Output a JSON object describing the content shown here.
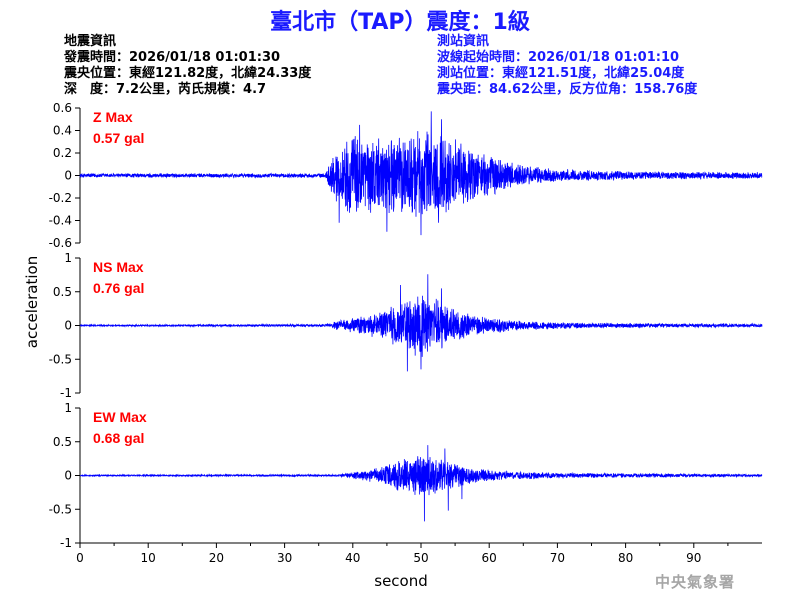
{
  "title": "臺北市（TAP）震度：1級",
  "earthquake_info": {
    "heading": "地震資訊",
    "origin_time": "發震時間：2026/01/18 01:01:30",
    "epicenter": "震央位置：東經121.82度，北緯24.33度",
    "depth_magnitude": "深　度：7.2公里，芮氏規模：4.7"
  },
  "station_info": {
    "heading": "測站資訊",
    "waveform_start": "波線起始時間：2026/01/18 01:01:10",
    "station_location": "測站位置：東經121.51度，北緯25.04度",
    "distance_azimuth": "震央距：84.62公里，反方位角：158.76度"
  },
  "footer_org": "中央氣象署",
  "colors": {
    "title": "#1a1aff",
    "trace": "#0000ff",
    "peak_label": "#ff0000",
    "info_right": "#1a1aff"
  },
  "chart_data": {
    "type": "line",
    "xlabel": "second",
    "ylabel": "acceleration",
    "xlim": [
      0,
      100
    ],
    "x_ticks": [
      0,
      10,
      20,
      30,
      40,
      50,
      60,
      70,
      80,
      90
    ],
    "grid": false,
    "panels": [
      {
        "name": "Z Max",
        "peak": "0.57 gal",
        "ylim": [
          -0.6,
          0.6
        ],
        "y_ticks": [
          0.6,
          0.4,
          0.2,
          0,
          -0.2,
          -0.4,
          -0.6
        ],
        "y_tick_labels": [
          "0.6",
          "0.4",
          "0.2",
          "0",
          "-0.2",
          "-0.4",
          "-0.6"
        ],
        "envelope": [
          [
            0,
            0.02
          ],
          [
            36,
            0.02
          ],
          [
            37,
            0.2
          ],
          [
            40,
            0.4
          ],
          [
            44,
            0.35
          ],
          [
            48,
            0.4
          ],
          [
            52,
            0.45
          ],
          [
            56,
            0.3
          ],
          [
            60,
            0.2
          ],
          [
            65,
            0.1
          ],
          [
            70,
            0.06
          ],
          [
            80,
            0.04
          ],
          [
            100,
            0.03
          ]
        ],
        "peaks": [
          [
            51.5,
            0.57
          ],
          [
            50,
            -0.53
          ],
          [
            53,
            0.5
          ],
          [
            45,
            -0.5
          ],
          [
            41,
            0.45
          ],
          [
            38,
            -0.42
          ]
        ]
      },
      {
        "name": "NS Max",
        "peak": "0.76 gal",
        "ylim": [
          -1,
          1
        ],
        "y_ticks": [
          1,
          0.5,
          0,
          -0.5,
          -1
        ],
        "y_tick_labels": [
          "1",
          "0.5",
          "0",
          "-0.5",
          "-1"
        ],
        "envelope": [
          [
            0,
            0.01
          ],
          [
            36,
            0.02
          ],
          [
            38,
            0.08
          ],
          [
            42,
            0.15
          ],
          [
            46,
            0.3
          ],
          [
            48,
            0.4
          ],
          [
            50,
            0.5
          ],
          [
            52,
            0.45
          ],
          [
            55,
            0.28
          ],
          [
            58,
            0.15
          ],
          [
            65,
            0.07
          ],
          [
            75,
            0.04
          ],
          [
            100,
            0.025
          ]
        ],
        "peaks": [
          [
            51,
            0.76
          ],
          [
            48,
            -0.68
          ],
          [
            50,
            -0.65
          ],
          [
            53,
            0.55
          ],
          [
            47,
            0.6
          ]
        ]
      },
      {
        "name": "EW Max",
        "peak": "0.68 gal",
        "ylim": [
          -1,
          1
        ],
        "y_ticks": [
          1,
          0.5,
          0,
          -0.5,
          -1
        ],
        "y_tick_labels": [
          "1",
          "0.5",
          "0",
          "-0.5",
          "-1"
        ],
        "envelope": [
          [
            0,
            0.01
          ],
          [
            38,
            0.015
          ],
          [
            40,
            0.05
          ],
          [
            44,
            0.12
          ],
          [
            47,
            0.25
          ],
          [
            50,
            0.35
          ],
          [
            52,
            0.32
          ],
          [
            55,
            0.2
          ],
          [
            58,
            0.12
          ],
          [
            62,
            0.07
          ],
          [
            70,
            0.04
          ],
          [
            100,
            0.02
          ]
        ],
        "peaks": [
          [
            50.5,
            -0.68
          ],
          [
            51,
            0.45
          ],
          [
            53.5,
            0.4
          ],
          [
            54,
            -0.52
          ],
          [
            56,
            -0.35
          ]
        ]
      }
    ]
  }
}
